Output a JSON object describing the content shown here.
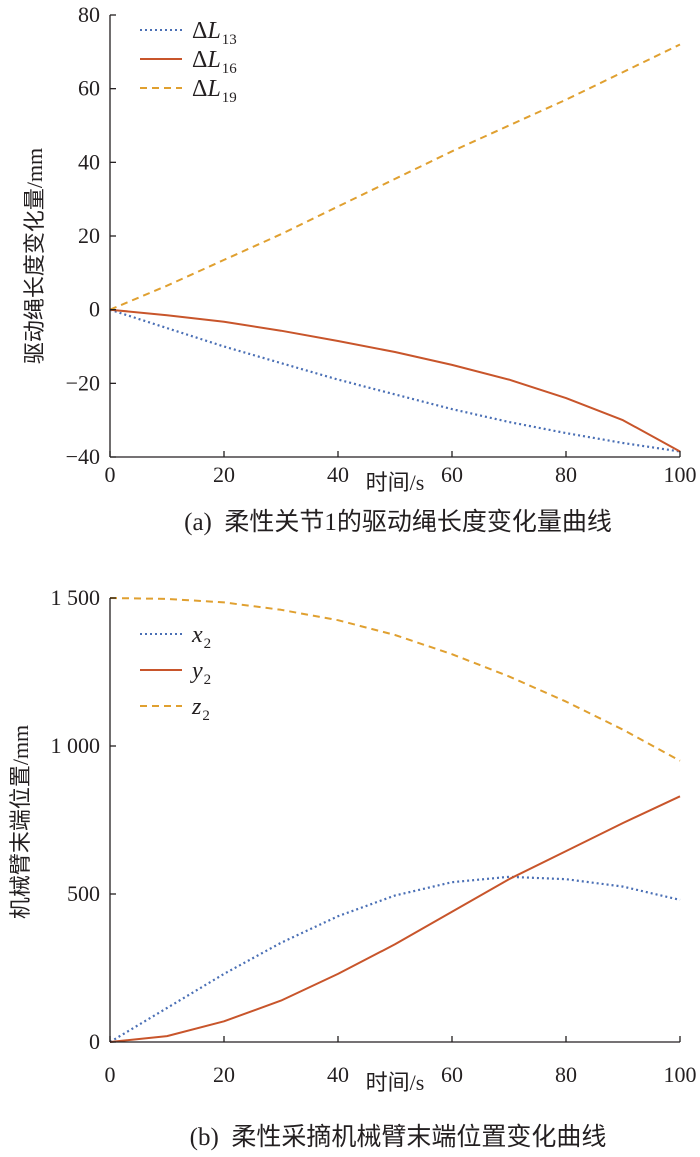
{
  "colors": {
    "series_blue": "#4a6fb5",
    "series_red": "#c8552b",
    "series_orange": "#e0a030",
    "axis": "#231f20"
  },
  "chart_data": [
    {
      "type": "line",
      "caption": "(a)  柔性关节1的驱动绳长度变化量曲线",
      "xlabel": "时间/s",
      "ylabel": "驱动绳长度变化量/mm",
      "xlim": [
        0,
        100
      ],
      "ylim": [
        -40,
        80
      ],
      "xticks": [
        0,
        20,
        40,
        60,
        80,
        100
      ],
      "yticks": [
        -40,
        -20,
        0,
        20,
        40,
        60,
        80
      ],
      "ytick_labels": [
        "−40",
        "−20",
        "0",
        "20",
        "40",
        "60",
        "80"
      ],
      "legend_position": "top-left",
      "series": [
        {
          "name": "ΔL13",
          "name_main": "ΔL",
          "name_sub": "13",
          "color": "#4a6fb5",
          "style": "dotted",
          "x": [
            0,
            10,
            20,
            30,
            40,
            50,
            60,
            70,
            80,
            90,
            100
          ],
          "y": [
            0,
            -5,
            -10,
            -14.5,
            -19,
            -23,
            -27,
            -30.5,
            -33.5,
            -36.2,
            -38.5
          ]
        },
        {
          "name": "ΔL16",
          "name_main": "ΔL",
          "name_sub": "16",
          "color": "#c8552b",
          "style": "solid",
          "x": [
            0,
            10,
            20,
            30,
            40,
            50,
            60,
            70,
            80,
            90,
            100
          ],
          "y": [
            0,
            -1.5,
            -3.3,
            -5.7,
            -8.5,
            -11.5,
            -15,
            -19,
            -24,
            -30,
            -38.5
          ]
        },
        {
          "name": "ΔL19",
          "name_main": "ΔL",
          "name_sub": "19",
          "color": "#e0a030",
          "style": "dashed",
          "x": [
            0,
            10,
            20,
            30,
            40,
            50,
            60,
            70,
            80,
            90,
            100
          ],
          "y": [
            0,
            6.5,
            13.5,
            20.5,
            28,
            35.5,
            43,
            50,
            57,
            64.5,
            72
          ]
        }
      ]
    },
    {
      "type": "line",
      "caption": "(b)  柔性采摘机械臂末端位置变化曲线",
      "xlabel": "时间/s",
      "ylabel": "机械臂末端位置/mm",
      "xlim": [
        0,
        100
      ],
      "ylim": [
        0,
        1500
      ],
      "xticks": [
        0,
        20,
        40,
        60,
        80,
        100
      ],
      "yticks": [
        0,
        500,
        1000,
        1500
      ],
      "ytick_labels": [
        "0",
        "500",
        "1 000",
        "1 500"
      ],
      "legend_position": "top-left",
      "series": [
        {
          "name": "x2",
          "name_main": "x",
          "name_sub": "2",
          "color": "#4a6fb5",
          "style": "dotted",
          "x": [
            0,
            10,
            20,
            30,
            40,
            50,
            60,
            70,
            80,
            90,
            100
          ],
          "y": [
            0,
            115,
            230,
            335,
            425,
            495,
            540,
            558,
            550,
            525,
            480
          ]
        },
        {
          "name": "y2",
          "name_main": "y",
          "name_sub": "2",
          "color": "#c8552b",
          "style": "solid",
          "x": [
            0,
            10,
            20,
            30,
            40,
            50,
            60,
            70,
            80,
            90,
            100
          ],
          "y": [
            0,
            20,
            70,
            140,
            230,
            330,
            440,
            550,
            645,
            740,
            830
          ]
        },
        {
          "name": "z2",
          "name_main": "z",
          "name_sub": "2",
          "color": "#e0a030",
          "style": "dashed",
          "x": [
            0,
            10,
            20,
            30,
            40,
            50,
            60,
            70,
            80,
            90,
            100
          ],
          "y": [
            1500,
            1497,
            1485,
            1460,
            1425,
            1375,
            1310,
            1235,
            1150,
            1055,
            950
          ]
        }
      ]
    }
  ]
}
